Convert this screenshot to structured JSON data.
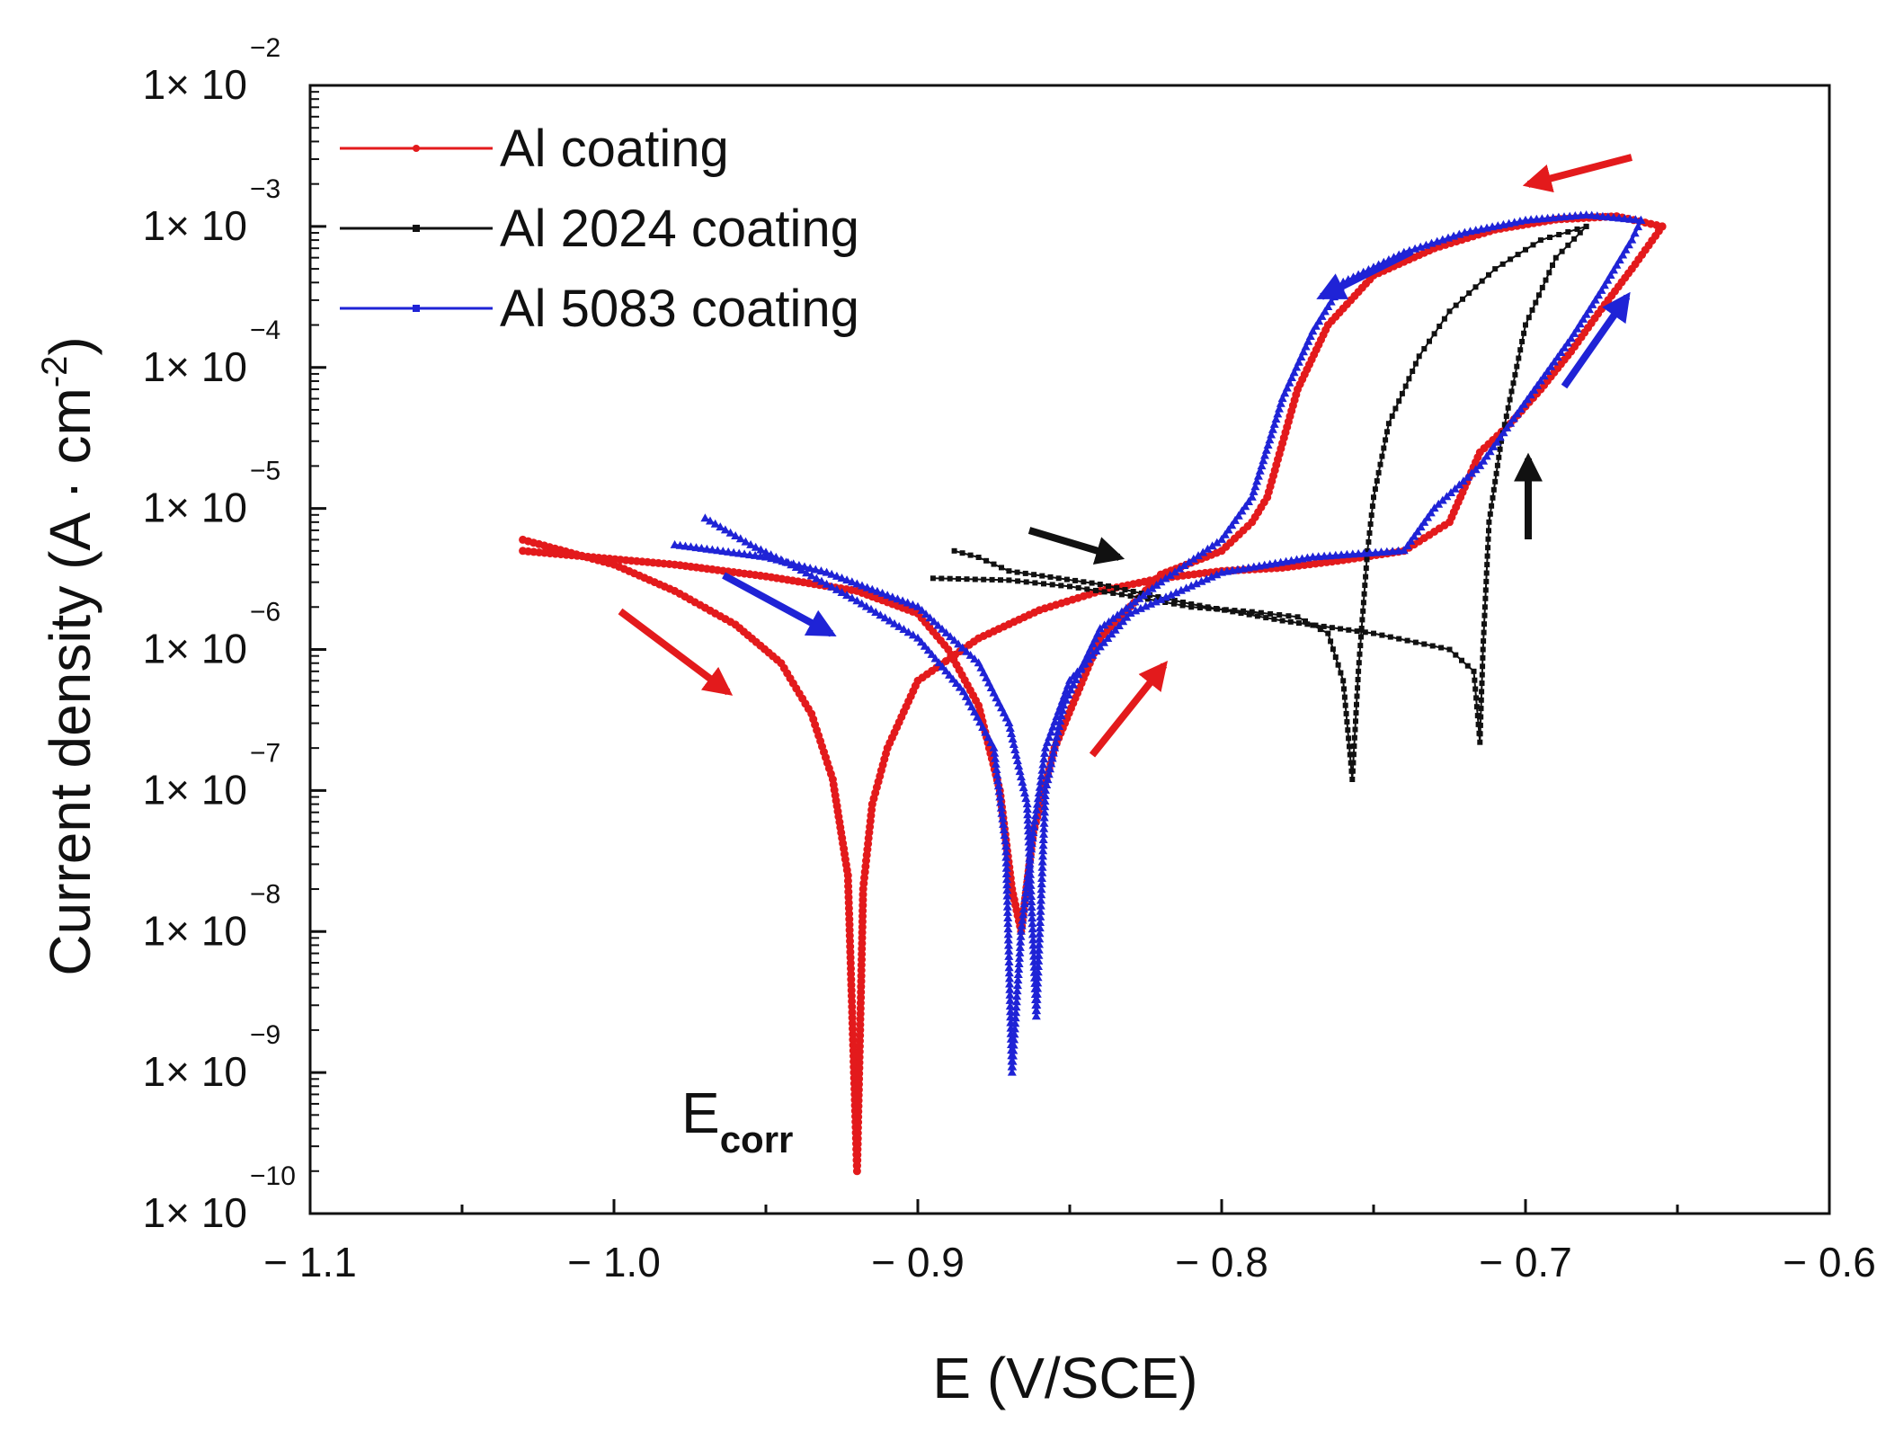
{
  "chart_data": {
    "type": "line",
    "title": "",
    "xlabel": "E (V/SCE)",
    "ylabel": "Current density (A · cm",
    "ylabel_superscript": "-2",
    "ylabel_close": ")",
    "x_scale": "linear",
    "y_scale": "log",
    "xlim": [
      -1.1,
      -0.6
    ],
    "ylim": [
      1e-10,
      0.01
    ],
    "x_ticks": [
      -1.1,
      -1.0,
      -0.9,
      -0.8,
      -0.7,
      -0.6
    ],
    "x_tick_labels": [
      "− 1.1",
      "− 1.0",
      "− 0.9",
      "− 0.8",
      "− 0.7",
      "− 0.6"
    ],
    "y_ticks": [
      {
        "value": 0.01,
        "mantissa": "1× 10",
        "exponent": "−2"
      },
      {
        "value": 0.001,
        "mantissa": "1× 10",
        "exponent": "−3"
      },
      {
        "value": 0.0001,
        "mantissa": "1× 10",
        "exponent": "−4"
      },
      {
        "value": 1e-05,
        "mantissa": "1× 10",
        "exponent": "−5"
      },
      {
        "value": 1e-06,
        "mantissa": "1× 10",
        "exponent": "−6"
      },
      {
        "value": 1e-07,
        "mantissa": "1× 10",
        "exponent": "−7"
      },
      {
        "value": 1e-08,
        "mantissa": "1× 10",
        "exponent": "−8"
      },
      {
        "value": 1e-09,
        "mantissa": "1× 10",
        "exponent": "−9"
      },
      {
        "value": 1e-10,
        "mantissa": "1× 10",
        "exponent": "−10"
      }
    ],
    "legend_position": "top-left",
    "series": [
      {
        "name": "Al coating",
        "color": "#e31a1c",
        "marker": "circle",
        "forward": [
          [
            -1.03,
            6e-06
          ],
          [
            -1.0,
            4e-06
          ],
          [
            -0.98,
            2.6e-06
          ],
          [
            -0.96,
            1.5e-06
          ],
          [
            -0.945,
            8e-07
          ],
          [
            -0.935,
            3.5e-07
          ],
          [
            -0.928,
            1.2e-07
          ],
          [
            -0.923,
            2.5e-08
          ],
          [
            -0.92,
            2e-10
          ],
          [
            -0.918,
            2e-08
          ],
          [
            -0.915,
            8e-08
          ],
          [
            -0.91,
            2e-07
          ],
          [
            -0.9,
            6e-07
          ],
          [
            -0.88,
            1.2e-06
          ],
          [
            -0.86,
            1.9e-06
          ],
          [
            -0.84,
            2.6e-06
          ],
          [
            -0.82,
            3.2e-06
          ],
          [
            -0.8,
            3.6e-06
          ],
          [
            -0.78,
            3.8e-06
          ],
          [
            -0.76,
            4.3e-06
          ],
          [
            -0.74,
            5e-06
          ],
          [
            -0.725,
            8e-06
          ],
          [
            -0.715,
            2.5e-05
          ],
          [
            -0.705,
            4e-05
          ],
          [
            -0.695,
            7e-05
          ],
          [
            -0.685,
            0.00013
          ],
          [
            -0.675,
            0.00026
          ],
          [
            -0.665,
            0.0005
          ],
          [
            -0.655,
            0.001
          ]
        ],
        "reverse": [
          [
            -0.655,
            0.001
          ],
          [
            -0.67,
            0.00118
          ],
          [
            -0.69,
            0.00112
          ],
          [
            -0.71,
            0.00095
          ],
          [
            -0.73,
            0.0007
          ],
          [
            -0.75,
            0.00045
          ],
          [
            -0.765,
            0.0002
          ],
          [
            -0.775,
            7e-05
          ],
          [
            -0.785,
            1.2e-05
          ],
          [
            -0.79,
            8e-06
          ],
          [
            -0.8,
            5e-06
          ],
          [
            -0.82,
            3.4e-06
          ],
          [
            -0.84,
            1.2e-06
          ],
          [
            -0.855,
            2e-07
          ],
          [
            -0.862,
            5e-08
          ],
          [
            -0.866,
            1e-08
          ],
          [
            -0.869,
            2e-08
          ],
          [
            -0.873,
            1e-07
          ],
          [
            -0.88,
            4e-07
          ],
          [
            -0.89,
            1e-06
          ],
          [
            -0.9,
            1.8e-06
          ],
          [
            -0.92,
            2.6e-06
          ],
          [
            -0.95,
            3.3e-06
          ],
          [
            -0.98,
            4e-06
          ],
          [
            -1.03,
            5e-06
          ]
        ]
      },
      {
        "name": "Al 2024 coating",
        "color": "#111111",
        "marker": "square",
        "forward": [
          [
            -0.895,
            3.2e-06
          ],
          [
            -0.87,
            3.1e-06
          ],
          [
            -0.85,
            2.8e-06
          ],
          [
            -0.83,
            2.4e-06
          ],
          [
            -0.81,
            2e-06
          ],
          [
            -0.79,
            1.85e-06
          ],
          [
            -0.775,
            1.7e-06
          ],
          [
            -0.765,
            1.3e-06
          ],
          [
            -0.76,
            6e-07
          ],
          [
            -0.757,
            1.2e-07
          ],
          [
            -0.755,
            7e-07
          ],
          [
            -0.752,
            5e-06
          ],
          [
            -0.75,
            1.2e-05
          ],
          [
            -0.745,
            4e-05
          ],
          [
            -0.735,
            0.00012
          ],
          [
            -0.725,
            0.00025
          ],
          [
            -0.71,
            0.0005
          ],
          [
            -0.695,
            0.0008
          ],
          [
            -0.68,
            0.001
          ]
        ],
        "reverse": [
          [
            -0.68,
            0.001
          ],
          [
            -0.69,
            0.0006
          ],
          [
            -0.7,
            0.0002
          ],
          [
            -0.708,
            3e-05
          ],
          [
            -0.712,
            8e-06
          ],
          [
            -0.714,
            1e-06
          ],
          [
            -0.715,
            2.2e-07
          ],
          [
            -0.717,
            7e-07
          ],
          [
            -0.725,
            1e-06
          ],
          [
            -0.75,
            1.3e-06
          ],
          [
            -0.78,
            1.6e-06
          ],
          [
            -0.81,
            2.1e-06
          ],
          [
            -0.84,
            2.9e-06
          ],
          [
            -0.87,
            3.6e-06
          ],
          [
            -0.88,
            4.5e-06
          ],
          [
            -0.888,
            5e-06
          ]
        ]
      },
      {
        "name": "Al 5083 coating",
        "color": "#1f23d6",
        "marker": "triangle",
        "forward": [
          [
            -0.97,
            8.5e-06
          ],
          [
            -0.955,
            5.5e-06
          ],
          [
            -0.94,
            3.8e-06
          ],
          [
            -0.92,
            2.2e-06
          ],
          [
            -0.9,
            1.2e-06
          ],
          [
            -0.885,
            5e-07
          ],
          [
            -0.875,
            2e-07
          ],
          [
            -0.871,
            4e-08
          ],
          [
            -0.869,
            1e-09
          ],
          [
            -0.866,
            1e-08
          ],
          [
            -0.862,
            5e-08
          ],
          [
            -0.858,
            2e-07
          ],
          [
            -0.85,
            6e-07
          ],
          [
            -0.83,
            1.8e-06
          ],
          [
            -0.8,
            3.5e-06
          ],
          [
            -0.77,
            4.5e-06
          ],
          [
            -0.74,
            5e-06
          ],
          [
            -0.73,
            1e-05
          ],
          [
            -0.715,
            2e-05
          ],
          [
            -0.705,
            4e-05
          ],
          [
            -0.695,
            8e-05
          ],
          [
            -0.685,
            0.00016
          ],
          [
            -0.675,
            0.00035
          ],
          [
            -0.665,
            0.0008
          ],
          [
            -0.662,
            0.0011
          ]
        ],
        "reverse": [
          [
            -0.662,
            0.0011
          ],
          [
            -0.68,
            0.0012
          ],
          [
            -0.7,
            0.0011
          ],
          [
            -0.72,
            0.0009
          ],
          [
            -0.74,
            0.00065
          ],
          [
            -0.76,
            0.0004
          ],
          [
            -0.77,
            0.00018
          ],
          [
            -0.78,
            6e-05
          ],
          [
            -0.79,
            1.2e-05
          ],
          [
            -0.8,
            6e-06
          ],
          [
            -0.82,
            3e-06
          ],
          [
            -0.84,
            1.4e-06
          ],
          [
            -0.852,
            4e-07
          ],
          [
            -0.858,
            1e-07
          ],
          [
            -0.861,
            2.5e-09
          ],
          [
            -0.864,
            8e-08
          ],
          [
            -0.87,
            3e-07
          ],
          [
            -0.88,
            8e-07
          ],
          [
            -0.9,
            2e-06
          ],
          [
            -0.93,
            3.5e-06
          ],
          [
            -0.95,
            4.5e-06
          ],
          [
            -0.98,
            5.5e-06
          ]
        ]
      }
    ],
    "annotations": {
      "ecorr_main": "E",
      "ecorr_sub": "corr"
    },
    "direction_arrows": [
      {
        "color": "#e31a1c",
        "direction": "down-right"
      },
      {
        "color": "#e31a1c",
        "direction": "up-right"
      },
      {
        "color": "#e31a1c",
        "direction": "left"
      },
      {
        "color": "#111111",
        "direction": "right"
      },
      {
        "color": "#111111",
        "direction": "up"
      },
      {
        "color": "#1f23d6",
        "direction": "down-right"
      },
      {
        "color": "#1f23d6",
        "direction": "up-left"
      },
      {
        "color": "#1f23d6",
        "direction": "up-right"
      }
    ]
  }
}
